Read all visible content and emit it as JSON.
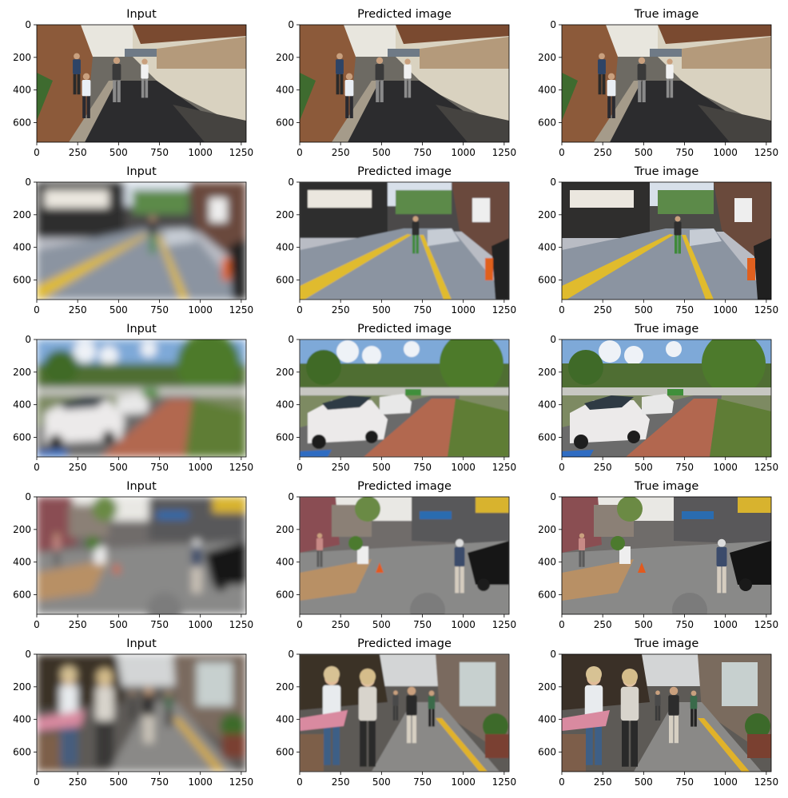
{
  "chart_data": {
    "type": "image-grid",
    "rows": 5,
    "columns": [
      "Input",
      "Predicted image",
      "True image"
    ],
    "axes": {
      "x_ticks": [
        "0",
        "250",
        "500",
        "750",
        "1000",
        "1250"
      ],
      "y_ticks": [
        "0",
        "200",
        "400",
        "600"
      ],
      "xlim": [
        0,
        1280
      ],
      "ylim": [
        720,
        0
      ]
    },
    "panels": [
      {
        "scene": "hanok-alley",
        "blurred_input": false
      },
      {
        "scene": "street-yellow-line",
        "blurred_input": true
      },
      {
        "scene": "parked-cars-sidewalk",
        "blurred_input": true
      },
      {
        "scene": "shopping-street-crosswalk",
        "blurred_input": true
      },
      {
        "scene": "crowded-market-street",
        "blurred_input": true
      }
    ]
  }
}
